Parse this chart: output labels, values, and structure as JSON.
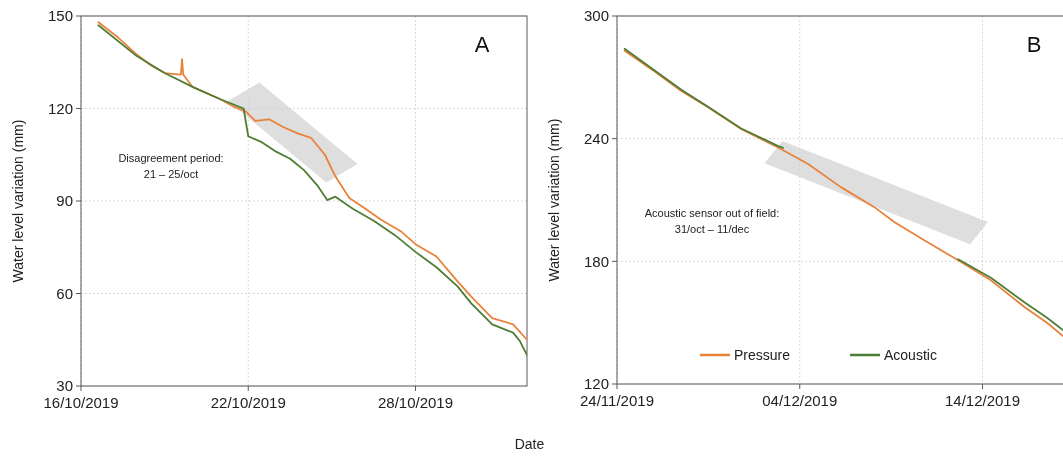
{
  "chart_data": [
    {
      "type": "line",
      "title": "A",
      "xlabel": "Date",
      "ylabel": "Water level variation (mm)",
      "annotations": [
        "Disagreement period:\n21 – 25/oct"
      ],
      "xlim": [
        "2019-10-16",
        "2019-11-01"
      ],
      "xticks": [
        {
          "value": "2019-10-16",
          "label": "16/10/2019"
        },
        {
          "value": "2019-10-22",
          "label": "22/10/2019"
        },
        {
          "value": "2019-10-28",
          "label": "28/10/2019"
        }
      ],
      "ylim": [
        30,
        150
      ],
      "yticks": [
        30,
        60,
        90,
        120,
        150
      ],
      "grid": true,
      "legend": false,
      "series": [
        {
          "color": "#e8823a",
          "x": [
            "2019-10-16T15:00",
            "2019-10-17T08:00",
            "2019-10-18T00:00",
            "2019-10-18T12:00",
            "2019-10-19T00:00",
            "2019-10-19T14:00",
            "2019-10-19T15:00",
            "2019-10-19T16:00",
            "2019-10-20T00:00",
            "2019-10-21T00:00",
            "2019-10-21T12:00",
            "2019-10-21T22:00",
            "2019-10-22T06:00",
            "2019-10-22T18:00",
            "2019-10-23T06:00",
            "2019-10-23T18:00",
            "2019-10-24T06:00",
            "2019-10-24T18:00",
            "2019-10-25T03:00",
            "2019-10-25T15:00",
            "2019-10-26T03:00",
            "2019-10-26T18:00",
            "2019-10-27T12:00",
            "2019-10-28T00:00",
            "2019-10-28T18:00",
            "2019-10-29T12:00",
            "2019-10-30T00:00",
            "2019-10-30T18:00",
            "2019-10-31T12:00",
            "2019-11-01T00:00"
          ],
          "values": [
            148,
            143,
            137.5,
            134,
            131.5,
            131,
            136,
            131,
            127,
            123,
            120.5,
            119,
            116,
            116.5,
            114,
            112,
            110.5,
            105,
            98,
            91,
            88,
            84,
            80,
            76,
            72,
            64,
            59,
            52,
            50,
            45
          ]
        },
        {
          "color": "#4e7d35",
          "x": [
            "2019-10-16T15:00",
            "2019-10-18T00:00",
            "2019-10-19T00:00",
            "2019-10-20T00:00",
            "2019-10-21T00:00",
            "2019-10-21T20:00",
            "2019-10-22T00:00",
            "2019-10-22T12:00",
            "2019-10-23T00:00",
            "2019-10-23T12:00",
            "2019-10-24T00:00",
            "2019-10-24T12:00",
            "2019-10-24T20:00",
            "2019-10-25T03:00",
            "2019-10-25T18:00",
            "2019-10-26T12:00",
            "2019-10-27T06:00",
            "2019-10-28T00:00",
            "2019-10-28T18:00",
            "2019-10-29T12:00",
            "2019-10-30T00:00",
            "2019-10-30T18:00",
            "2019-10-31T12:00",
            "2019-10-31T18:00",
            "2019-11-01T00:00"
          ],
          "values": [
            147,
            137,
            131.5,
            127,
            123,
            120,
            111,
            109,
            106,
            103.7,
            100,
            94.8,
            90.3,
            91.4,
            87.5,
            83.6,
            79,
            73.5,
            68.5,
            62.4,
            56.8,
            50,
            47.3,
            44.5,
            40
          ]
        }
      ]
    },
    {
      "type": "line",
      "title": "B",
      "ylabel": "Water level variation (mm)",
      "annotations": [
        "Acoustic sensor out of field:\n31/oct – 11/dec"
      ],
      "xlim": [
        "2019-11-24",
        "2019-12-18T11:00"
      ],
      "xticks": [
        {
          "value": "2019-11-24",
          "label": "24/11/2019"
        },
        {
          "value": "2019-12-04",
          "label": "04/12/2019"
        },
        {
          "value": "2019-12-14",
          "label": "14/12/2019"
        }
      ],
      "ylim": [
        120,
        300
      ],
      "yticks": [
        120,
        180,
        240,
        300
      ],
      "grid": true,
      "legend": "bottom",
      "series": [
        {
          "name": "Pressure",
          "color": "#e8823a",
          "x": [
            "2019-11-24T10:00",
            "2019-11-26T01:00",
            "2019-11-27T12:00",
            "2019-11-29T00:00",
            "2019-11-30T19:00",
            "2019-12-02T19:00",
            "2019-12-04T11:00",
            "2019-12-06T06:00",
            "2019-12-08T02:00",
            "2019-12-09T04:00",
            "2019-12-10T20:00",
            "2019-12-12T16:00",
            "2019-12-14T11:00",
            "2019-12-16T07:00",
            "2019-12-17T14:00",
            "2019-12-18T11:00"
          ],
          "values": [
            283,
            273,
            263.4,
            255.3,
            244.7,
            235.8,
            227.6,
            216.3,
            206.5,
            199.2,
            190.2,
            180.5,
            170.7,
            157.7,
            149.6,
            143
          ]
        },
        {
          "name": "Acoustic",
          "color": "#4e7d35",
          "x": [
            "2019-11-24T10:00",
            "2019-11-26T01:00",
            "2019-11-27T12:00",
            "2019-11-29T00:00",
            "2019-11-30T19:00",
            "2019-12-02T19:00",
            "2019-12-03T02:00",
            "2019-12-08T00:00",
            "2019-12-12T16:00",
            "2019-12-14T11:00",
            "2019-12-16T07:00",
            "2019-12-17T14:00",
            "2019-12-18T11:00"
          ],
          "values": [
            284,
            273.5,
            264,
            255.5,
            245,
            236.5,
            235.5,
            null,
            181,
            172,
            160,
            152,
            146
          ]
        }
      ]
    }
  ]
}
